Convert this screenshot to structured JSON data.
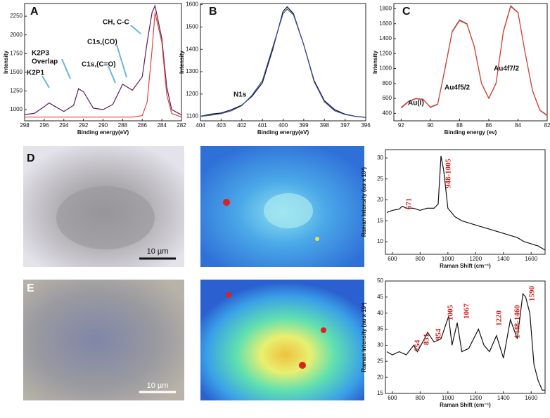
{
  "chart_data": [
    {
      "type": "line",
      "panel": "A",
      "xlabel": "Binding energy(eV)",
      "ylabel": "Intensity",
      "x": [
        298,
        297,
        296,
        295.5,
        295,
        294,
        293,
        292.5,
        292,
        291,
        290,
        289,
        288,
        287.5,
        287,
        286,
        285.5,
        285,
        284.7,
        284,
        283.5,
        283,
        282
      ],
      "series": [
        {
          "color": "#5a1a5a",
          "values": [
            935,
            950,
            1040,
            1090,
            1050,
            975,
            1060,
            1280,
            1240,
            1020,
            1000,
            1070,
            1340,
            1300,
            1260,
            1440,
            1900,
            2300,
            2390,
            1950,
            1300,
            1000,
            930
          ]
        },
        {
          "color": "#e0453a",
          "values": [
            900,
            900,
            900,
            900,
            900,
            900,
            900,
            900,
            900,
            900,
            900,
            900,
            900,
            900,
            900,
            920,
            1100,
            1800,
            2300,
            1900,
            1200,
            950,
            900
          ]
        }
      ],
      "xlim": [
        298,
        282
      ],
      "ylim": [
        850,
        2420
      ],
      "xticks": [
        298,
        296,
        294,
        292,
        290,
        288,
        286,
        284,
        282
      ],
      "yticks": [
        1000,
        1250,
        1500,
        1750,
        2000,
        2250
      ],
      "annotations": [
        "K2P1",
        "K2P3",
        "Overlap",
        "C1s,(C=O)",
        "C1s,(CO)",
        "CH, C-C"
      ]
    },
    {
      "type": "line",
      "panel": "B",
      "xlabel": "Binding energy(eV)",
      "ylabel": "Intensity",
      "x": [
        404,
        403.5,
        403,
        402.5,
        402,
        401.5,
        401,
        400.5,
        400,
        399.8,
        399.5,
        399,
        398.5,
        398,
        397.5,
        397,
        396.5,
        396
      ],
      "series": [
        {
          "color": "#111111",
          "values": [
            1100,
            1110,
            1115,
            1130,
            1150,
            1190,
            1250,
            1400,
            1570,
            1590,
            1560,
            1420,
            1260,
            1170,
            1130,
            1110,
            1100,
            1095
          ]
        },
        {
          "color": "#3a4fa0",
          "values": [
            1100,
            1105,
            1112,
            1125,
            1148,
            1195,
            1260,
            1410,
            1560,
            1580,
            1555,
            1420,
            1255,
            1165,
            1125,
            1108,
            1100,
            1096
          ]
        }
      ],
      "xlim": [
        404,
        396
      ],
      "ylim": [
        1080,
        1605
      ],
      "xticks": [
        404,
        403,
        402,
        401,
        400,
        399,
        398,
        397,
        396
      ],
      "yticks": [
        1100,
        1200,
        1300,
        1400,
        1500,
        1600
      ],
      "annotations": [
        "N1s"
      ]
    },
    {
      "type": "line",
      "panel": "C",
      "xlabel": "Binding energy (ev)",
      "ylabel": "Intensity",
      "x": [
        92,
        91.5,
        91,
        90.5,
        90,
        89.5,
        89,
        88.5,
        88,
        87.5,
        87,
        86.5,
        86,
        85.5,
        85,
        84.5,
        84,
        83.5,
        83,
        82.5,
        82
      ],
      "series": [
        {
          "color": "#555555",
          "values": [
            480,
            560,
            600,
            590,
            480,
            520,
            1000,
            1500,
            1650,
            1600,
            1300,
            800,
            600,
            800,
            1500,
            1840,
            1750,
            1200,
            700,
            440,
            370
          ]
        },
        {
          "color": "#e0453a",
          "values": [
            470,
            555,
            595,
            585,
            485,
            525,
            990,
            1490,
            1640,
            1595,
            1295,
            805,
            605,
            805,
            1490,
            1830,
            1745,
            1195,
            705,
            445,
            375
          ]
        }
      ],
      "xlim": [
        92.5,
        82
      ],
      "ylim": [
        300,
        1870
      ],
      "xticks": [
        92,
        90,
        88,
        86,
        84,
        82
      ],
      "yticks": [
        400,
        600,
        800,
        1000,
        1200,
        1400,
        1600,
        1800
      ],
      "annotations": [
        "Au(I)",
        "Au4f5/2",
        "Au4f7/2"
      ]
    },
    {
      "type": "line",
      "panel": "D",
      "xlabel": "Raman Shift (cm⁻¹)",
      "ylabel": "Raman Intensity (au x 10³)",
      "x": [
        560,
        600,
        650,
        671,
        700,
        750,
        800,
        850,
        900,
        930,
        950,
        970,
        1000,
        1050,
        1100,
        1150,
        1200,
        1250,
        1300,
        1350,
        1400,
        1450,
        1500,
        1550,
        1600,
        1650,
        1700
      ],
      "series": [
        {
          "color": "#111111",
          "values": [
            17,
            17.5,
            17.8,
            18.5,
            18,
            18,
            17.5,
            18,
            18,
            19,
            30.5,
            27,
            18,
            16,
            15,
            14.5,
            14,
            13.5,
            13,
            12.5,
            12,
            11.5,
            11,
            10,
            9.5,
            9,
            8
          ]
        }
      ],
      "xlim": [
        550,
        1700
      ],
      "ylim": [
        7,
        32
      ],
      "xticks": [
        600,
        800,
        1000,
        1200,
        1400,
        1600
      ],
      "yticks": [
        10,
        15,
        20,
        25,
        30
      ],
      "annotations": [
        "671",
        "948-1005"
      ]
    },
    {
      "type": "line",
      "panel": "E",
      "xlabel": "Raman Shift (cm⁻¹)",
      "ylabel": "Raman Intensity (au x 10³)",
      "x": [
        560,
        600,
        650,
        700,
        754,
        780,
        831,
        854,
        900,
        950,
        1005,
        1030,
        1067,
        1100,
        1150,
        1220,
        1260,
        1300,
        1350,
        1400,
        1450,
        1500,
        1540,
        1560,
        1590,
        1620,
        1650,
        1680,
        1700
      ],
      "series": [
        {
          "color": "#111111",
          "values": [
            28,
            27,
            28,
            27,
            30,
            28,
            32,
            34,
            31,
            32,
            39,
            30,
            37,
            28,
            29,
            35,
            30,
            28,
            33,
            26,
            38,
            32,
            46,
            45,
            40,
            24,
            19,
            16,
            16
          ]
        }
      ],
      "xlim": [
        550,
        1700
      ],
      "ylim": [
        15,
        50
      ],
      "xticks": [
        600,
        800,
        1000,
        1200,
        1400,
        1600
      ],
      "yticks": [
        15,
        20,
        25,
        30,
        35,
        40,
        45,
        50
      ],
      "annotations": [
        "754",
        "831",
        "854",
        "1005",
        "1067",
        "1220",
        "1448-1460",
        "1590"
      ]
    }
  ],
  "images": [
    {
      "label": "D",
      "scale_bar": "10 µm"
    },
    {
      "label": "E",
      "scale_bar": "10 µm"
    }
  ]
}
